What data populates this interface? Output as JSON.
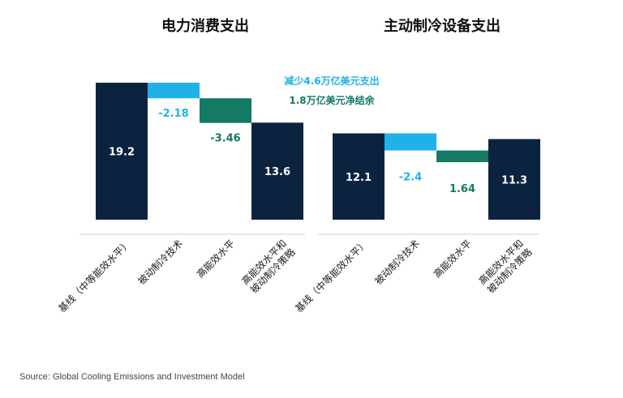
{
  "chart_data": [
    {
      "type": "bar",
      "subtype": "waterfall",
      "title": "电力消费支出",
      "categories": [
        "基线（中等能效水平）",
        "被动制冷技术",
        "高能效水平",
        "高能效水平和被动制冷策略"
      ],
      "values": [
        19.2,
        -2.18,
        -3.46,
        13.6
      ],
      "value_labels": [
        "19.2",
        "-2.18",
        "-3.46",
        "13.6"
      ],
      "kinds": [
        "total",
        "delta",
        "delta",
        "total"
      ],
      "colors": [
        "#0c2340",
        "#1fb2e8",
        "#157a64",
        "#0c2340"
      ]
    },
    {
      "type": "bar",
      "subtype": "waterfall",
      "title": "主动制冷设备支出",
      "categories": [
        "基线（中等能效水平）",
        "被动制冷技术",
        "高能效水平",
        "高能效水平和被动制冷策略"
      ],
      "values": [
        12.1,
        -2.4,
        1.64,
        11.3
      ],
      "value_labels": [
        "12.1",
        "-2.4",
        "1.64",
        "11.3"
      ],
      "kinds": [
        "total",
        "delta",
        "delta",
        "total"
      ],
      "colors": [
        "#0c2340",
        "#1fb2e8",
        "#157a64",
        "#0c2340"
      ]
    }
  ],
  "annotations": [
    {
      "text": "减少4.6万亿美元支出",
      "color": "#1fb2e8"
    },
    {
      "text": "1.8万亿美元净结余",
      "color": "#157a64"
    }
  ],
  "source": "Source: Global Cooling Emissions and Investment Model"
}
